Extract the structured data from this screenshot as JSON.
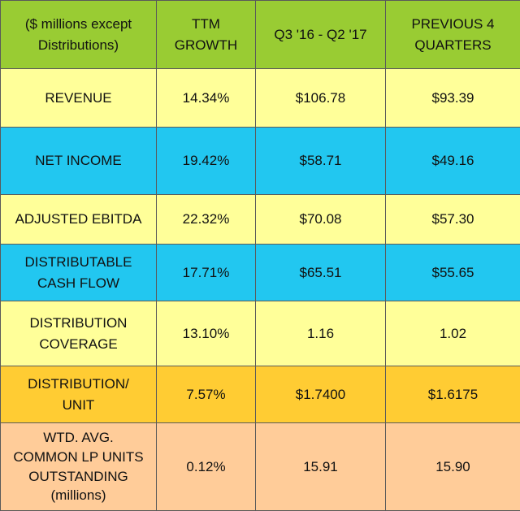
{
  "table": {
    "headers": [
      "($ millions except\nDistributions)",
      "TTM\nGROWTH",
      "Q3 '16 - Q2 '17",
      "PREVIOUS 4\nQUARTERS"
    ],
    "header_color": "#99cc33",
    "rows": [
      {
        "label": "REVENUE",
        "ttm_growth": "14.34%",
        "current": "$106.78",
        "previous": "$93.39",
        "color": "#ffff99"
      },
      {
        "label": "NET INCOME",
        "ttm_growth": "19.42%",
        "current": "$58.71",
        "previous": "$49.16",
        "color": "#22c7f0"
      },
      {
        "label": "ADJUSTED EBITDA",
        "ttm_growth": "22.32%",
        "current": "$70.08",
        "previous": "$57.30",
        "color": "#ffff99"
      },
      {
        "label": "DISTRIBUTABLE\nCASH FLOW",
        "ttm_growth": "17.71%",
        "current": "$65.51",
        "previous": "$55.65",
        "color": "#22c7f0"
      },
      {
        "label": "DISTRIBUTION\nCOVERAGE",
        "ttm_growth": "13.10%",
        "current": "1.16",
        "previous": "1.02",
        "color": "#ffff99"
      },
      {
        "label": "DISTRIBUTION/\nUNIT",
        "ttm_growth": "7.57%",
        "current": "$1.7400",
        "previous": "$1.6175",
        "color": "#ffcc33"
      },
      {
        "label": "WTD. AVG.\nCOMMON  LP UNITS\nOUTSTANDING\n(millions)",
        "ttm_growth": "0.12%",
        "current": "15.91",
        "previous": "15.90",
        "color": "#ffcc99"
      }
    ]
  }
}
